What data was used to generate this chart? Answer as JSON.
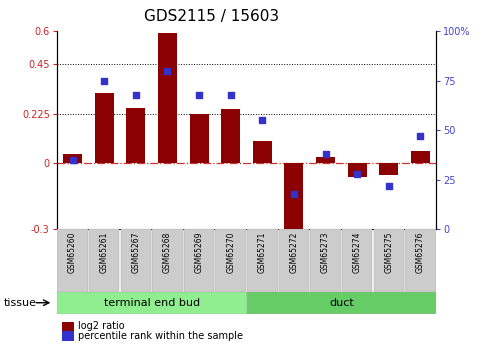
{
  "title": "GDS2115 / 15603",
  "samples": [
    "GSM65260",
    "GSM65261",
    "GSM65267",
    "GSM65268",
    "GSM65269",
    "GSM65270",
    "GSM65271",
    "GSM65272",
    "GSM65273",
    "GSM65274",
    "GSM65275",
    "GSM65276"
  ],
  "log2_ratio": [
    0.04,
    0.32,
    0.25,
    0.59,
    0.225,
    0.245,
    0.1,
    -0.37,
    0.03,
    -0.06,
    -0.055,
    0.055
  ],
  "percentile_rank": [
    35,
    75,
    68,
    80,
    68,
    68,
    55,
    18,
    38,
    28,
    22,
    47
  ],
  "groups": [
    {
      "label": "terminal end bud",
      "start": 0,
      "end": 6,
      "color": "#90EE90"
    },
    {
      "label": "duct",
      "start": 6,
      "end": 12,
      "color": "#66CC66"
    }
  ],
  "ylim_left": [
    -0.3,
    0.6
  ],
  "ylim_right": [
    0,
    100
  ],
  "yticks_left": [
    -0.3,
    0,
    0.225,
    0.45,
    0.6
  ],
  "yticks_right": [
    0,
    25,
    50,
    75,
    100
  ],
  "hlines": [
    0.45,
    0.225
  ],
  "bar_color": "#8B0000",
  "dot_color": "#3333CC",
  "zero_line_color": "#CC3333",
  "background_color": "#ffffff",
  "tissue_label": "tissue",
  "legend_log2": "log2 ratio",
  "legend_pct": "percentile rank within the sample",
  "title_fontsize": 11,
  "tick_fontsize": 7,
  "sample_fontsize": 5.5,
  "tissue_fontsize": 8,
  "legend_fontsize": 7
}
